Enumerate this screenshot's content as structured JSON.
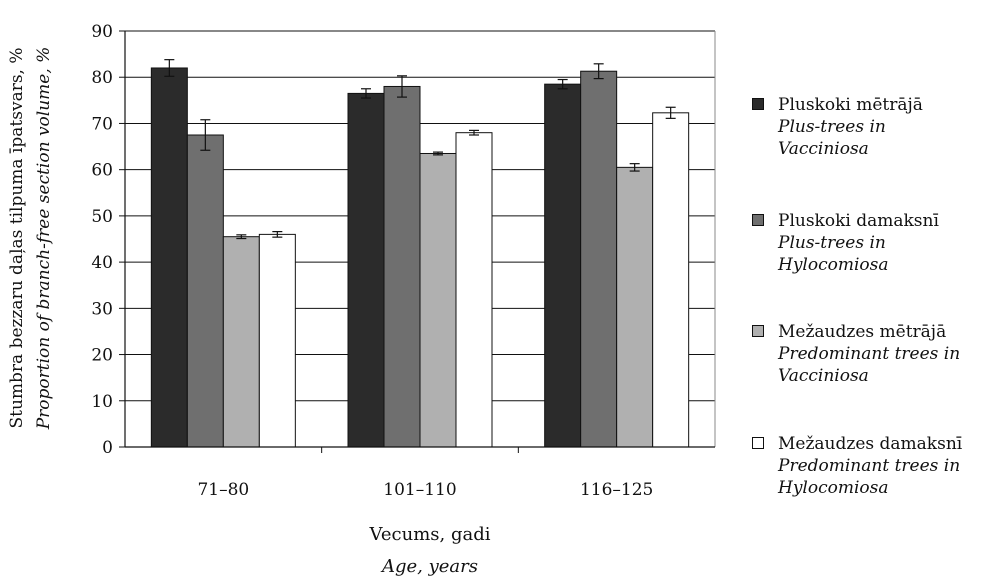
{
  "colors": {
    "series": [
      "#2b2b2b",
      "#6f6f6f",
      "#b0b0b0",
      "#ffffff"
    ],
    "axis": "#111111",
    "grid": "#111111"
  },
  "x_axis": {
    "title": "Vecums, gadi",
    "title_en": "Age, years"
  },
  "y_axis": {
    "title": "Stumbra bezzaru daļas tilpuma īpatsvars, %",
    "title_en": "Proportion of branch-free section volume, %"
  },
  "legend": [
    {
      "name": "Pluskoki mētrājā",
      "sub_1": "Plus-trees in Vacciniosa",
      "sub_2": ""
    },
    {
      "name": "Pluskoki damaksnī",
      "sub_1": "Plus-trees in",
      "sub_2": "Hylocomiosa"
    },
    {
      "name": "Mežaudzes mētrājā",
      "sub_1": "Predominant trees in",
      "sub_2": "Vacciniosa"
    },
    {
      "name": "Mežaudzes damaksnī",
      "sub_1": "Predominant trees in",
      "sub_2": "Hylocomiosa"
    }
  ],
  "chart_data": {
    "type": "bar",
    "categories": [
      "71–80",
      "101–110",
      "116–125"
    ],
    "series": [
      {
        "name": "Pluskoki mētrājā",
        "values": [
          82,
          76.5,
          78.5
        ],
        "errors": [
          1.8,
          1.0,
          1.0
        ]
      },
      {
        "name": "Pluskoki damaksnī",
        "values": [
          67.5,
          78,
          81.3
        ],
        "errors": [
          3.3,
          2.3,
          1.6
        ]
      },
      {
        "name": "Mežaudzes mētrājā",
        "values": [
          45.5,
          63.5,
          60.5
        ],
        "errors": [
          0.4,
          0.3,
          0.8
        ]
      },
      {
        "name": "Mežaudzes damaksnī",
        "values": [
          46,
          68,
          72.3
        ],
        "errors": [
          0.6,
          0.5,
          1.2
        ]
      }
    ],
    "ylim": [
      0,
      90
    ],
    "yticks": [
      "0",
      "10",
      "20",
      "30",
      "40",
      "50",
      "60",
      "70",
      "80",
      "90"
    ],
    "grid": true,
    "legend_position": "right"
  }
}
